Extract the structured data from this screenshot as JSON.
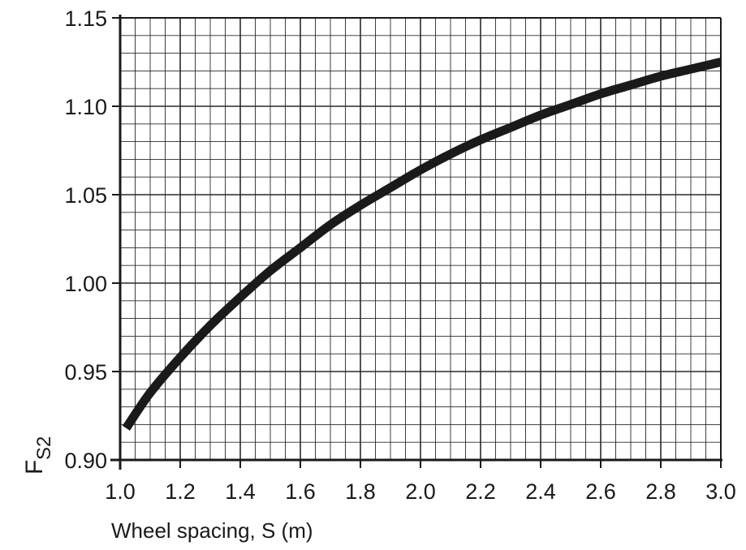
{
  "chart_data": {
    "type": "line",
    "title": "",
    "xlabel": "Wheel spacing, S (m)",
    "ylabel": {
      "main": "F",
      "sub": "S2"
    },
    "xlim": [
      1.0,
      3.0
    ],
    "ylim": [
      0.9,
      1.15
    ],
    "grid": true,
    "x_minor_step": 0.05,
    "y_minor_step": 0.01,
    "x_ticks": [
      "1.0",
      "1.2",
      "1.4",
      "1.6",
      "1.8",
      "2.0",
      "2.2",
      "2.4",
      "2.6",
      "2.8",
      "3.0"
    ],
    "y_ticks": [
      "0.90",
      "0.95",
      "1.00",
      "1.05",
      "1.10",
      "1.15"
    ],
    "series": [
      {
        "color": "#1a1a1a",
        "x": [
          1.02,
          1.1,
          1.2,
          1.3,
          1.4,
          1.5,
          1.6,
          1.7,
          1.8,
          1.9,
          2.0,
          2.1,
          2.2,
          2.3,
          2.4,
          2.5,
          2.6,
          2.7,
          2.8,
          2.9,
          3.0
        ],
        "y": [
          0.918,
          0.938,
          0.958,
          0.976,
          0.992,
          1.007,
          1.02,
          1.033,
          1.044,
          1.054,
          1.064,
          1.073,
          1.081,
          1.088,
          1.095,
          1.101,
          1.107,
          1.112,
          1.117,
          1.121,
          1.125
        ]
      }
    ]
  }
}
